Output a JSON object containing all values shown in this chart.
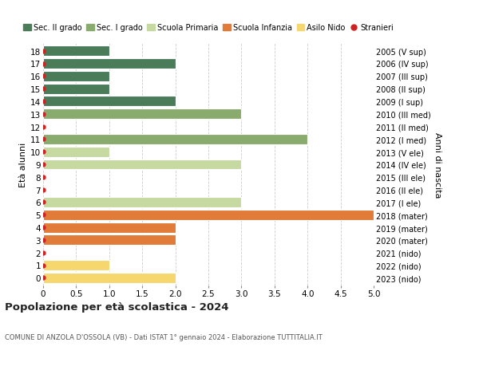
{
  "ages": [
    18,
    17,
    16,
    15,
    14,
    13,
    12,
    11,
    10,
    9,
    8,
    7,
    6,
    5,
    4,
    3,
    2,
    1,
    0
  ],
  "right_labels": [
    "2005 (V sup)",
    "2006 (IV sup)",
    "2007 (III sup)",
    "2008 (II sup)",
    "2009 (I sup)",
    "2010 (III med)",
    "2011 (II med)",
    "2012 (I med)",
    "2013 (V ele)",
    "2014 (IV ele)",
    "2015 (III ele)",
    "2016 (II ele)",
    "2017 (I ele)",
    "2018 (mater)",
    "2019 (mater)",
    "2020 (mater)",
    "2021 (nido)",
    "2022 (nido)",
    "2023 (nido)"
  ],
  "values": [
    1,
    2,
    1,
    1,
    2,
    3,
    0,
    4,
    1,
    3,
    0,
    0,
    3,
    5,
    2,
    2,
    0,
    1,
    2
  ],
  "colors": [
    "#4a7c59",
    "#4a7c59",
    "#4a7c59",
    "#4a7c59",
    "#4a7c59",
    "#8aab6e",
    "#8aab6e",
    "#8aab6e",
    "#c5d9a0",
    "#c5d9a0",
    "#c5d9a0",
    "#c5d9a0",
    "#c5d9a0",
    "#e07b39",
    "#e07b39",
    "#e07b39",
    "#f5d76e",
    "#f5d76e",
    "#f5d76e"
  ],
  "legend_labels": [
    "Sec. II grado",
    "Sec. I grado",
    "Scuola Primaria",
    "Scuola Infanzia",
    "Asilo Nido",
    "Stranieri"
  ],
  "legend_colors": [
    "#4a7c59",
    "#8aab6e",
    "#c5d9a0",
    "#e07b39",
    "#f5d76e",
    "#cc2222"
  ],
  "dot_color": "#cc2222",
  "title": "Popolazione per età scolastica - 2024",
  "subtitle": "COMUNE DI ANZOLA D'OSSOLA (VB) - Dati ISTAT 1° gennaio 2024 - Elaborazione TUTTITALIA.IT",
  "ylabel_left": "Età alunni",
  "ylabel_right": "Anni di nascita",
  "xlim": [
    0,
    5.0
  ],
  "background_color": "#ffffff",
  "grid_color": "#cccccc",
  "bar_height": 0.82,
  "figsize": [
    6.0,
    4.6
  ],
  "dpi": 100
}
